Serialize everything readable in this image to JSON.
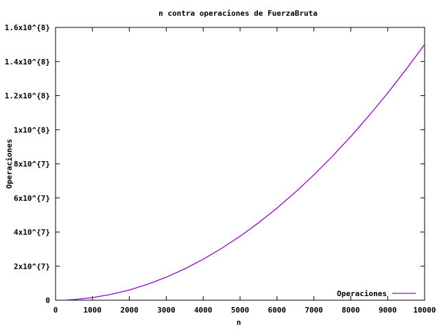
{
  "chart_data": {
    "type": "line",
    "title": "n contra operaciones de FuerzaBruta",
    "xlabel": "n",
    "ylabel": "Operaciones",
    "xlim": [
      0,
      10000
    ],
    "ylim": [
      0,
      160000000
    ],
    "grid": false,
    "legend_position": "bottom-right",
    "x_ticks": [
      0,
      1000,
      2000,
      3000,
      4000,
      5000,
      6000,
      7000,
      8000,
      9000,
      10000
    ],
    "x_tick_labels": [
      "0",
      "1000",
      "2000",
      "3000",
      "4000",
      "5000",
      "6000",
      "7000",
      "8000",
      "9000",
      "10000"
    ],
    "y_ticks": [
      0,
      20000000,
      40000000,
      60000000,
      80000000,
      100000000,
      120000000,
      140000000,
      160000000
    ],
    "y_tick_labels": [
      "0",
      "2x10^{7}",
      "4x10^{7}",
      "6x10^{7}",
      "8x10^{7}",
      "1x10^{8}",
      "1.2x10^{8}",
      "1.4x10^{8}",
      "1.6x10^{8}"
    ],
    "series": [
      {
        "name": "Operaciones",
        "color": "#9400d3",
        "x": [
          300,
          500,
          1000,
          1500,
          2000,
          2500,
          3000,
          3500,
          4000,
          4500,
          5000,
          5500,
          6000,
          6500,
          7000,
          7500,
          8000,
          8500,
          9000,
          9500,
          10000
        ],
        "y": [
          150000,
          400000,
          1500000,
          3400000,
          6000000,
          9400000,
          13500000,
          18400000,
          24000000,
          30400000,
          37500000,
          45400000,
          54000000,
          63400000,
          73500000,
          84400000,
          96000000,
          108400000,
          121500000,
          135400000,
          150000000
        ]
      }
    ]
  }
}
